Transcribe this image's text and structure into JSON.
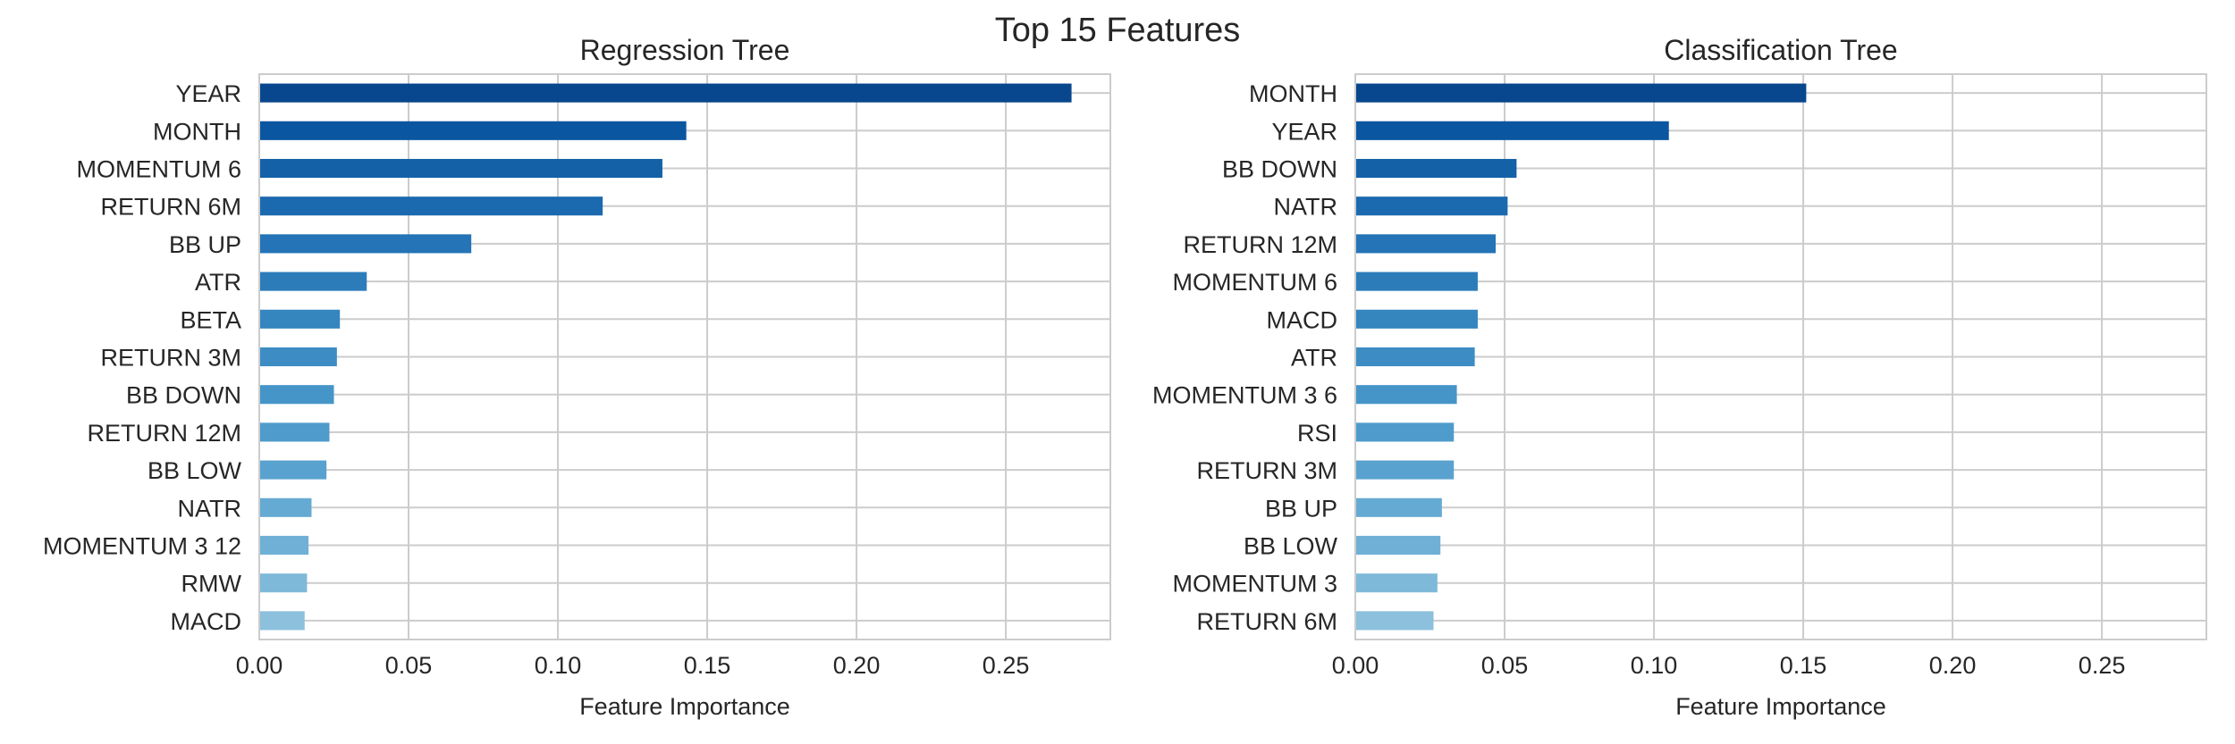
{
  "figure": {
    "title": "Top 15 Features"
  },
  "chart_data": [
    {
      "type": "bar",
      "orientation": "horizontal",
      "title": "Regression Tree",
      "xlabel": "Feature Importance",
      "ylabel": "",
      "xlim": [
        0,
        0.285
      ],
      "xticks": [
        0.0,
        0.05,
        0.1,
        0.15,
        0.2,
        0.25
      ],
      "xtick_labels": [
        "0.00",
        "0.05",
        "0.10",
        "0.15",
        "0.20",
        "0.25"
      ],
      "grid": true,
      "categories": [
        "YEAR",
        "MONTH",
        "MOMENTUM 6",
        "RETURN 6M",
        "BB UP",
        "ATR",
        "BETA",
        "RETURN 3M",
        "BB DOWN",
        "RETURN 12M",
        "BB LOW",
        "NATR",
        "MOMENTUM 3 12",
        "RMW",
        "MACD"
      ],
      "values": [
        0.272,
        0.143,
        0.135,
        0.115,
        0.071,
        0.036,
        0.027,
        0.026,
        0.025,
        0.0235,
        0.0225,
        0.0175,
        0.0165,
        0.016,
        0.0152
      ],
      "colors": [
        "#08478d",
        "#0b56a0",
        "#1461a8",
        "#1b69af",
        "#2474b7",
        "#2c7cba",
        "#3585bf",
        "#3d8dc4",
        "#4695c8",
        "#4f9bcb",
        "#59a2cf",
        "#65aad3",
        "#70b0d6",
        "#7fb9da",
        "#8cc0dd"
      ]
    },
    {
      "type": "bar",
      "orientation": "horizontal",
      "title": "Classification Tree",
      "xlabel": "Feature Importance",
      "ylabel": "",
      "xlim": [
        0,
        0.285
      ],
      "xticks": [
        0.0,
        0.05,
        0.1,
        0.15,
        0.2,
        0.25
      ],
      "xtick_labels": [
        "0.00",
        "0.05",
        "0.10",
        "0.15",
        "0.20",
        "0.25"
      ],
      "grid": true,
      "categories": [
        "MONTH",
        "YEAR",
        "BB DOWN",
        "NATR",
        "RETURN 12M",
        "MOMENTUM 6",
        "MACD",
        "ATR",
        "MOMENTUM 3 6",
        "RSI",
        "RETURN 3M",
        "BB UP",
        "BB LOW",
        "MOMENTUM 3",
        "RETURN 6M"
      ],
      "values": [
        0.151,
        0.105,
        0.054,
        0.051,
        0.047,
        0.041,
        0.041,
        0.04,
        0.034,
        0.033,
        0.033,
        0.029,
        0.0285,
        0.0275,
        0.0262
      ],
      "colors": [
        "#08478d",
        "#0b56a0",
        "#1461a8",
        "#1b69af",
        "#2474b7",
        "#2c7cba",
        "#3585bf",
        "#3d8dc4",
        "#4695c8",
        "#4f9bcb",
        "#59a2cf",
        "#65aad3",
        "#70b0d6",
        "#7fb9da",
        "#8cc0dd"
      ]
    }
  ]
}
